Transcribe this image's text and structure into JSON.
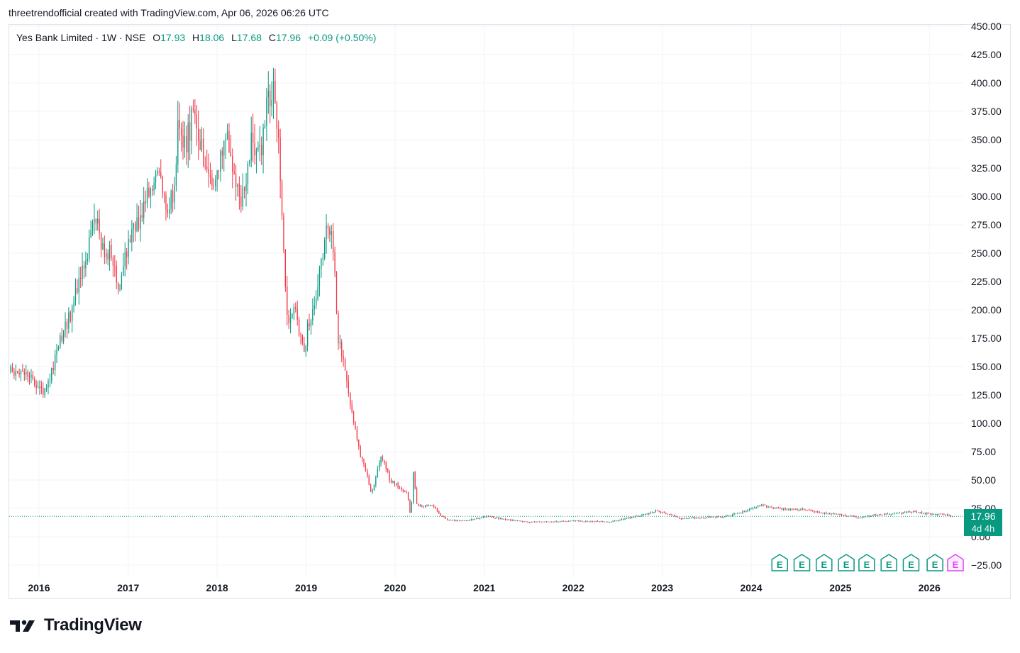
{
  "header": {
    "caption": "threetrendofficial created with TradingView.com, Apr 06, 2026 06:26 UTC"
  },
  "legend": {
    "symbol": "Yes Bank Limited · 1W · NSE",
    "o_label": "O",
    "o": "17.93",
    "h_label": "H",
    "h": "18.06",
    "l_label": "L",
    "l": "17.68",
    "c_label": "C",
    "c": "17.96",
    "change": "+0.09 (+0.50%)"
  },
  "price_tag": {
    "price": "17.96",
    "countdown": "4d 4h"
  },
  "brand": {
    "name": "TradingView",
    "logo_icon": "tradingview-logo-icon"
  },
  "colors": {
    "up": "#089981",
    "down": "#f23645",
    "grid": "#f0f3fa",
    "axis_text": "#131722",
    "accent": "#089981",
    "earnings_upcoming": "#e040fb"
  },
  "chart_data": {
    "type": "candlestick",
    "interval": "1W",
    "ylim": [
      -35,
      452
    ],
    "y_ticks": [
      450,
      425,
      400,
      375,
      350,
      325,
      300,
      275,
      250,
      225,
      200,
      175,
      150,
      125,
      100,
      75,
      50,
      25,
      0,
      -25
    ],
    "y_tick_labels": [
      "450.00",
      "425.00",
      "400.00",
      "375.00",
      "350.00",
      "325.00",
      "300.00",
      "275.00",
      "250.00",
      "225.00",
      "200.00",
      "175.00",
      "150.00",
      "125.00",
      "100.00",
      "75.00",
      "50.00",
      "25.00",
      "0.00",
      "−25.00"
    ],
    "x_ticks": [
      "2016",
      "2017",
      "2018",
      "2019",
      "2020",
      "2021",
      "2022",
      "2023",
      "2024",
      "2025",
      "2026"
    ],
    "x_range": [
      "2015-09-01",
      "2026-05-20"
    ],
    "last_price": 17.96,
    "grid": true,
    "price_path": [
      [
        "2015-09-07",
        145
      ],
      [
        "2015-10-15",
        142
      ],
      [
        "2015-11-20",
        140
      ],
      [
        "2015-12-20",
        135
      ],
      [
        "2016-01-25",
        128
      ],
      [
        "2016-02-20",
        142
      ],
      [
        "2016-04-01",
        175
      ],
      [
        "2016-05-15",
        200
      ],
      [
        "2016-06-15",
        225
      ],
      [
        "2016-07-20",
        255
      ],
      [
        "2016-08-20",
        280
      ],
      [
        "2016-09-20",
        255
      ],
      [
        "2016-10-20",
        248
      ],
      [
        "2016-11-10",
        232
      ],
      [
        "2016-11-25",
        222
      ],
      [
        "2016-12-20",
        248
      ],
      [
        "2017-01-20",
        265
      ],
      [
        "2017-02-20",
        285
      ],
      [
        "2017-03-20",
        300
      ],
      [
        "2017-04-20",
        320
      ],
      [
        "2017-05-20",
        305
      ],
      [
        "2017-06-10",
        290
      ],
      [
        "2017-07-05",
        300
      ],
      [
        "2017-07-25",
        362
      ],
      [
        "2017-08-15",
        340
      ],
      [
        "2017-09-10",
        360
      ],
      [
        "2017-10-01",
        372
      ],
      [
        "2017-10-20",
        355
      ],
      [
        "2017-11-15",
        315
      ],
      [
        "2017-12-15",
        310
      ],
      [
        "2018-01-10",
        325
      ],
      [
        "2018-02-01",
        360
      ],
      [
        "2018-02-20",
        335
      ],
      [
        "2018-03-20",
        308
      ],
      [
        "2018-04-10",
        295
      ],
      [
        "2018-05-01",
        310
      ],
      [
        "2018-05-20",
        355
      ],
      [
        "2018-06-10",
        345
      ],
      [
        "2018-06-30",
        335
      ],
      [
        "2018-07-20",
        372
      ],
      [
        "2018-08-10",
        390
      ],
      [
        "2018-08-25",
        395
      ],
      [
        "2018-09-10",
        345
      ],
      [
        "2018-09-25",
        285
      ],
      [
        "2018-10-10",
        210
      ],
      [
        "2018-10-25",
        185
      ],
      [
        "2018-11-15",
        205
      ],
      [
        "2018-12-05",
        180
      ],
      [
        "2018-12-25",
        168
      ],
      [
        "2019-01-10",
        185
      ],
      [
        "2019-01-25",
        195
      ],
      [
        "2019-02-10",
        215
      ],
      [
        "2019-03-05",
        245
      ],
      [
        "2019-03-25",
        268
      ],
      [
        "2019-04-15",
        275
      ],
      [
        "2019-05-01",
        232
      ],
      [
        "2019-05-10",
        180
      ],
      [
        "2019-05-25",
        160
      ],
      [
        "2019-06-15",
        140
      ],
      [
        "2019-07-05",
        110
      ],
      [
        "2019-07-25",
        90
      ],
      [
        "2019-08-15",
        70
      ],
      [
        "2019-09-05",
        55
      ],
      [
        "2019-09-25",
        38
      ],
      [
        "2019-10-15",
        52
      ],
      [
        "2019-11-01",
        70
      ],
      [
        "2019-11-20",
        65
      ],
      [
        "2019-12-10",
        50
      ],
      [
        "2020-01-10",
        45
      ],
      [
        "2020-02-20",
        38
      ],
      [
        "2020-03-06",
        16
      ],
      [
        "2020-03-15",
        58
      ],
      [
        "2020-03-30",
        28
      ],
      [
        "2020-04-30",
        27
      ],
      [
        "2020-06-01",
        28
      ],
      [
        "2020-07-01",
        20
      ],
      [
        "2020-08-01",
        15
      ],
      [
        "2020-10-01",
        14
      ],
      [
        "2020-11-15",
        15
      ],
      [
        "2021-01-15",
        18
      ],
      [
        "2021-04-01",
        15
      ],
      [
        "2021-07-01",
        13
      ],
      [
        "2021-10-01",
        13
      ],
      [
        "2022-01-01",
        14
      ],
      [
        "2022-06-01",
        13
      ],
      [
        "2022-08-01",
        16
      ],
      [
        "2022-11-01",
        20
      ],
      [
        "2022-12-10",
        23
      ],
      [
        "2023-01-20",
        20
      ],
      [
        "2023-03-20",
        16
      ],
      [
        "2023-06-20",
        17
      ],
      [
        "2023-09-20",
        18
      ],
      [
        "2023-12-01",
        22
      ],
      [
        "2024-02-10",
        28
      ],
      [
        "2024-04-10",
        25
      ],
      [
        "2024-06-10",
        24
      ],
      [
        "2024-08-10",
        24
      ],
      [
        "2024-10-10",
        21
      ],
      [
        "2024-12-10",
        20
      ],
      [
        "2025-03-10",
        17
      ],
      [
        "2025-05-20",
        19
      ],
      [
        "2025-07-20",
        20
      ],
      [
        "2025-10-20",
        22
      ],
      [
        "2026-01-10",
        20
      ],
      [
        "2026-03-20",
        19
      ],
      [
        "2026-04-06",
        17.96
      ]
    ],
    "earnings_marker_dates": [
      "2024-04-27",
      "2024-07-27",
      "2024-10-26",
      "2025-01-25",
      "2025-04-19",
      "2025-07-19",
      "2025-10-18",
      "2026-01-24"
    ],
    "earnings_marker_label": "E",
    "upcoming_earnings_date": "2026-04-18"
  }
}
